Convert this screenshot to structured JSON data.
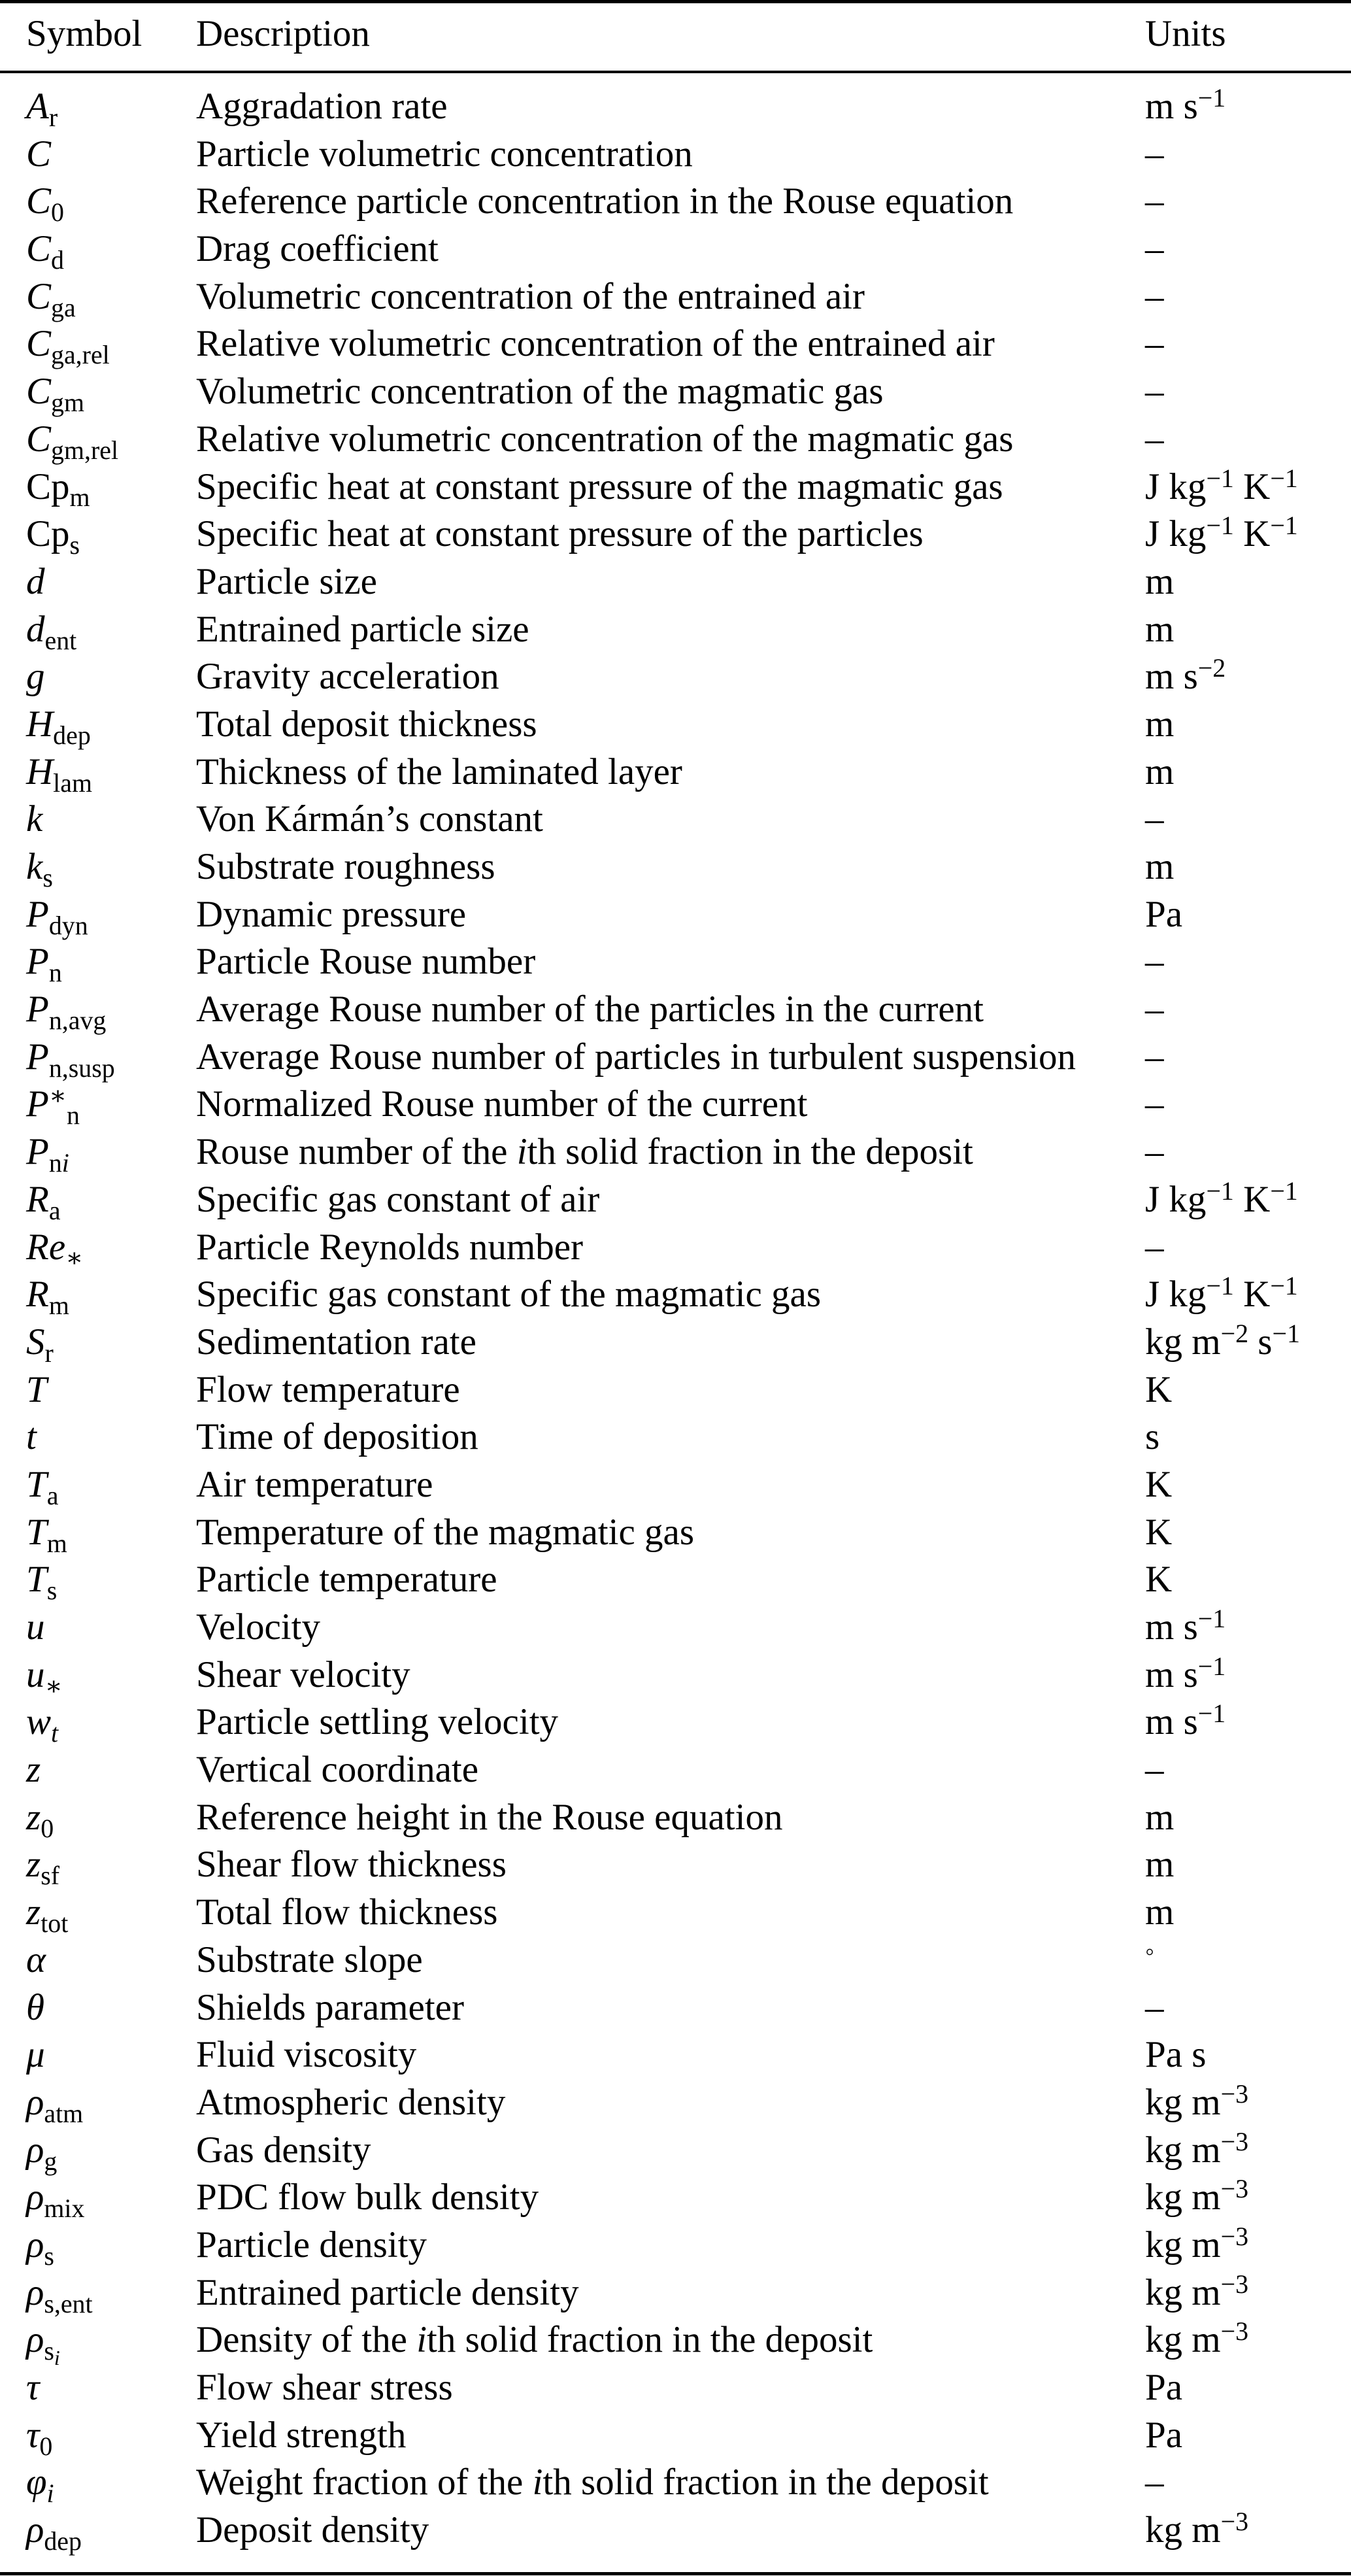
{
  "header": {
    "symbol": "Symbol",
    "description": "Description",
    "units": "Units"
  },
  "rows": [
    {
      "symbol": [
        [
          "i",
          "A"
        ],
        [
          "sub",
          "r"
        ]
      ],
      "description": [
        [
          "n",
          "Aggradation rate"
        ]
      ],
      "units": [
        [
          "n",
          "m s"
        ],
        [
          "sup",
          "−1"
        ]
      ]
    },
    {
      "symbol": [
        [
          "i",
          "C"
        ]
      ],
      "description": [
        [
          "n",
          "Particle volumetric concentration"
        ]
      ],
      "units": [
        [
          "n",
          "–"
        ]
      ]
    },
    {
      "symbol": [
        [
          "i",
          "C"
        ],
        [
          "sub",
          "0"
        ]
      ],
      "description": [
        [
          "n",
          "Reference particle concentration in the Rouse equation"
        ]
      ],
      "units": [
        [
          "n",
          "–"
        ]
      ]
    },
    {
      "symbol": [
        [
          "i",
          "C"
        ],
        [
          "sub",
          "d"
        ]
      ],
      "description": [
        [
          "n",
          "Drag coefficient"
        ]
      ],
      "units": [
        [
          "n",
          "–"
        ]
      ]
    },
    {
      "symbol": [
        [
          "i",
          "C"
        ],
        [
          "sub",
          "ga"
        ]
      ],
      "description": [
        [
          "n",
          "Volumetric concentration of the entrained air"
        ]
      ],
      "units": [
        [
          "n",
          "–"
        ]
      ]
    },
    {
      "symbol": [
        [
          "i",
          "C"
        ],
        [
          "sub",
          "ga,rel"
        ]
      ],
      "description": [
        [
          "n",
          "Relative volumetric concentration of the entrained air"
        ]
      ],
      "units": [
        [
          "n",
          "–"
        ]
      ]
    },
    {
      "symbol": [
        [
          "i",
          "C"
        ],
        [
          "sub",
          "gm"
        ]
      ],
      "description": [
        [
          "n",
          "Volumetric concentration of the magmatic gas"
        ]
      ],
      "units": [
        [
          "n",
          "–"
        ]
      ]
    },
    {
      "symbol": [
        [
          "i",
          "C"
        ],
        [
          "sub",
          "gm,rel"
        ]
      ],
      "description": [
        [
          "n",
          "Relative volumetric concentration of the magmatic gas"
        ]
      ],
      "units": [
        [
          "n",
          "–"
        ]
      ]
    },
    {
      "symbol": [
        [
          "n",
          "Cp"
        ],
        [
          "sub",
          "m"
        ]
      ],
      "description": [
        [
          "n",
          "Specific heat at constant pressure of the magmatic gas"
        ]
      ],
      "units": [
        [
          "n",
          "J kg"
        ],
        [
          "sup",
          "−1"
        ],
        [
          "n",
          " K"
        ],
        [
          "sup",
          "−1"
        ]
      ]
    },
    {
      "symbol": [
        [
          "n",
          "Cp"
        ],
        [
          "sub",
          "s"
        ]
      ],
      "description": [
        [
          "n",
          "Specific heat at constant pressure of the particles"
        ]
      ],
      "units": [
        [
          "n",
          "J kg"
        ],
        [
          "sup",
          "−1"
        ],
        [
          "n",
          " K"
        ],
        [
          "sup",
          "−1"
        ]
      ]
    },
    {
      "symbol": [
        [
          "i",
          "d"
        ]
      ],
      "description": [
        [
          "n",
          "Particle size"
        ]
      ],
      "units": [
        [
          "n",
          "m"
        ]
      ]
    },
    {
      "symbol": [
        [
          "i",
          "d"
        ],
        [
          "sub",
          "ent"
        ]
      ],
      "description": [
        [
          "n",
          "Entrained particle size"
        ]
      ],
      "units": [
        [
          "n",
          "m"
        ]
      ]
    },
    {
      "symbol": [
        [
          "i",
          "g"
        ]
      ],
      "description": [
        [
          "n",
          "Gravity acceleration"
        ]
      ],
      "units": [
        [
          "n",
          "m s"
        ],
        [
          "sup",
          "−2"
        ]
      ]
    },
    {
      "symbol": [
        [
          "i",
          "H"
        ],
        [
          "sub",
          "dep"
        ]
      ],
      "description": [
        [
          "n",
          "Total deposit thickness"
        ]
      ],
      "units": [
        [
          "n",
          "m"
        ]
      ]
    },
    {
      "symbol": [
        [
          "i",
          "H"
        ],
        [
          "sub",
          "lam"
        ]
      ],
      "description": [
        [
          "n",
          "Thickness of the laminated layer"
        ]
      ],
      "units": [
        [
          "n",
          "m"
        ]
      ]
    },
    {
      "symbol": [
        [
          "i",
          "k"
        ]
      ],
      "description": [
        [
          "n",
          "Von Kármán’s constant"
        ]
      ],
      "units": [
        [
          "n",
          "–"
        ]
      ]
    },
    {
      "symbol": [
        [
          "i",
          "k"
        ],
        [
          "sub",
          "s"
        ]
      ],
      "description": [
        [
          "n",
          "Substrate roughness"
        ]
      ],
      "units": [
        [
          "n",
          "m"
        ]
      ]
    },
    {
      "symbol": [
        [
          "i",
          "P"
        ],
        [
          "sub",
          "dyn"
        ]
      ],
      "description": [
        [
          "n",
          "Dynamic pressure"
        ]
      ],
      "units": [
        [
          "n",
          "Pa"
        ]
      ]
    },
    {
      "symbol": [
        [
          "i",
          "P"
        ],
        [
          "sub",
          "n"
        ]
      ],
      "description": [
        [
          "n",
          "Particle Rouse number"
        ]
      ],
      "units": [
        [
          "n",
          "–"
        ]
      ]
    },
    {
      "symbol": [
        [
          "i",
          "P"
        ],
        [
          "sub",
          "n,avg"
        ]
      ],
      "description": [
        [
          "n",
          "Average Rouse number of the particles in the current"
        ]
      ],
      "units": [
        [
          "n",
          "–"
        ]
      ]
    },
    {
      "symbol": [
        [
          "i",
          "P"
        ],
        [
          "sub",
          "n,susp"
        ]
      ],
      "description": [
        [
          "n",
          "Average Rouse number of particles in turbulent suspension"
        ]
      ],
      "units": [
        [
          "n",
          "–"
        ]
      ]
    },
    {
      "symbol": [
        [
          "i",
          "P"
        ],
        [
          "sup",
          "∗"
        ],
        [
          "sub",
          "n"
        ]
      ],
      "description": [
        [
          "n",
          "Normalized Rouse number of the current"
        ]
      ],
      "units": [
        [
          "n",
          "–"
        ]
      ]
    },
    {
      "symbol": [
        [
          "i",
          "P"
        ],
        [
          "sub",
          "n"
        ],
        [
          "subi",
          "i"
        ]
      ],
      "description": [
        [
          "n",
          "Rouse number of the "
        ],
        [
          "i",
          "i"
        ],
        [
          "n",
          "th solid fraction in the deposit"
        ]
      ],
      "units": [
        [
          "n",
          "–"
        ]
      ]
    },
    {
      "symbol": [
        [
          "i",
          "R"
        ],
        [
          "sub",
          "a"
        ]
      ],
      "description": [
        [
          "n",
          "Specific gas constant of air"
        ]
      ],
      "units": [
        [
          "n",
          "J kg"
        ],
        [
          "sup",
          "−1"
        ],
        [
          "n",
          " K"
        ],
        [
          "sup",
          "−1"
        ]
      ]
    },
    {
      "symbol": [
        [
          "i",
          "Re"
        ],
        [
          "sub",
          "∗"
        ]
      ],
      "description": [
        [
          "n",
          "Particle Reynolds number"
        ]
      ],
      "units": [
        [
          "n",
          "–"
        ]
      ]
    },
    {
      "symbol": [
        [
          "i",
          "R"
        ],
        [
          "sub",
          "m"
        ]
      ],
      "description": [
        [
          "n",
          "Specific gas constant of the magmatic gas"
        ]
      ],
      "units": [
        [
          "n",
          "J kg"
        ],
        [
          "sup",
          "−1"
        ],
        [
          "n",
          " K"
        ],
        [
          "sup",
          "−1"
        ]
      ]
    },
    {
      "symbol": [
        [
          "i",
          "S"
        ],
        [
          "sub",
          "r"
        ]
      ],
      "description": [
        [
          "n",
          "Sedimentation rate"
        ]
      ],
      "units": [
        [
          "n",
          "kg m"
        ],
        [
          "sup",
          "−2"
        ],
        [
          "n",
          " s"
        ],
        [
          "sup",
          "−1"
        ]
      ]
    },
    {
      "symbol": [
        [
          "i",
          "T"
        ]
      ],
      "description": [
        [
          "n",
          "Flow temperature"
        ]
      ],
      "units": [
        [
          "n",
          "K"
        ]
      ]
    },
    {
      "symbol": [
        [
          "i",
          "t"
        ]
      ],
      "description": [
        [
          "n",
          "Time of deposition"
        ]
      ],
      "units": [
        [
          "n",
          "s"
        ]
      ]
    },
    {
      "symbol": [
        [
          "i",
          "T"
        ],
        [
          "sub",
          "a"
        ]
      ],
      "description": [
        [
          "n",
          "Air temperature"
        ]
      ],
      "units": [
        [
          "n",
          "K"
        ]
      ]
    },
    {
      "symbol": [
        [
          "i",
          "T"
        ],
        [
          "sub",
          "m"
        ]
      ],
      "description": [
        [
          "n",
          "Temperature of the magmatic gas"
        ]
      ],
      "units": [
        [
          "n",
          "K"
        ]
      ]
    },
    {
      "symbol": [
        [
          "i",
          "T"
        ],
        [
          "sub",
          "s"
        ]
      ],
      "description": [
        [
          "n",
          "Particle temperature"
        ]
      ],
      "units": [
        [
          "n",
          "K"
        ]
      ]
    },
    {
      "symbol": [
        [
          "i",
          "u"
        ]
      ],
      "description": [
        [
          "n",
          "Velocity"
        ]
      ],
      "units": [
        [
          "n",
          "m s"
        ],
        [
          "sup",
          "−1"
        ]
      ]
    },
    {
      "symbol": [
        [
          "i",
          "u"
        ],
        [
          "sub",
          "∗"
        ]
      ],
      "description": [
        [
          "n",
          "Shear velocity"
        ]
      ],
      "units": [
        [
          "n",
          "m s"
        ],
        [
          "sup",
          "−1"
        ]
      ]
    },
    {
      "symbol": [
        [
          "i",
          "w"
        ],
        [
          "subi",
          "t"
        ]
      ],
      "description": [
        [
          "n",
          "Particle settling velocity"
        ]
      ],
      "units": [
        [
          "n",
          "m s"
        ],
        [
          "sup",
          "−1"
        ]
      ]
    },
    {
      "symbol": [
        [
          "i",
          "z"
        ]
      ],
      "description": [
        [
          "n",
          "Vertical coordinate"
        ]
      ],
      "units": [
        [
          "n",
          "–"
        ]
      ]
    },
    {
      "symbol": [
        [
          "i",
          "z"
        ],
        [
          "sub",
          "0"
        ]
      ],
      "description": [
        [
          "n",
          "Reference height in the Rouse equation"
        ]
      ],
      "units": [
        [
          "n",
          "m"
        ]
      ]
    },
    {
      "symbol": [
        [
          "i",
          "z"
        ],
        [
          "sub",
          "sf"
        ]
      ],
      "description": [
        [
          "n",
          "Shear flow thickness"
        ]
      ],
      "units": [
        [
          "n",
          "m"
        ]
      ]
    },
    {
      "symbol": [
        [
          "i",
          "z"
        ],
        [
          "sub",
          "tot"
        ]
      ],
      "description": [
        [
          "n",
          "Total flow thickness"
        ]
      ],
      "units": [
        [
          "n",
          "m"
        ]
      ]
    },
    {
      "symbol": [
        [
          "i",
          "α"
        ]
      ],
      "description": [
        [
          "n",
          "Substrate slope"
        ]
      ],
      "units": [
        [
          "sup",
          "◦"
        ]
      ]
    },
    {
      "symbol": [
        [
          "i",
          "θ"
        ]
      ],
      "description": [
        [
          "n",
          "Shields parameter"
        ]
      ],
      "units": [
        [
          "n",
          "–"
        ]
      ]
    },
    {
      "symbol": [
        [
          "i",
          "μ"
        ]
      ],
      "description": [
        [
          "n",
          "Fluid viscosity"
        ]
      ],
      "units": [
        [
          "n",
          "Pa s"
        ]
      ]
    },
    {
      "symbol": [
        [
          "i",
          "ρ"
        ],
        [
          "sub",
          "atm"
        ]
      ],
      "description": [
        [
          "n",
          "Atmospheric density"
        ]
      ],
      "units": [
        [
          "n",
          "kg m"
        ],
        [
          "sup",
          "−3"
        ]
      ]
    },
    {
      "symbol": [
        [
          "i",
          "ρ"
        ],
        [
          "sub",
          "g"
        ]
      ],
      "description": [
        [
          "n",
          "Gas density"
        ]
      ],
      "units": [
        [
          "n",
          "kg m"
        ],
        [
          "sup",
          "−3"
        ]
      ]
    },
    {
      "symbol": [
        [
          "i",
          "ρ"
        ],
        [
          "sub",
          "mix"
        ]
      ],
      "description": [
        [
          "n",
          "PDC flow bulk density"
        ]
      ],
      "units": [
        [
          "n",
          "kg m"
        ],
        [
          "sup",
          "−3"
        ]
      ]
    },
    {
      "symbol": [
        [
          "i",
          "ρ"
        ],
        [
          "sub",
          "s"
        ]
      ],
      "description": [
        [
          "n",
          "Particle density"
        ]
      ],
      "units": [
        [
          "n",
          "kg m"
        ],
        [
          "sup",
          "−3"
        ]
      ]
    },
    {
      "symbol": [
        [
          "i",
          "ρ"
        ],
        [
          "sub",
          "s,ent"
        ]
      ],
      "description": [
        [
          "n",
          "Entrained particle density"
        ]
      ],
      "units": [
        [
          "n",
          "kg m"
        ],
        [
          "sup",
          "−3"
        ]
      ]
    },
    {
      "symbol": [
        [
          "i",
          "ρ"
        ],
        [
          "subsub",
          "s",
          "i"
        ]
      ],
      "description": [
        [
          "n",
          "Density of the "
        ],
        [
          "i",
          "i"
        ],
        [
          "n",
          "th solid fraction in the deposit"
        ]
      ],
      "units": [
        [
          "n",
          "kg m"
        ],
        [
          "sup",
          "−3"
        ]
      ]
    },
    {
      "symbol": [
        [
          "i",
          "τ"
        ]
      ],
      "description": [
        [
          "n",
          "Flow shear stress"
        ]
      ],
      "units": [
        [
          "n",
          "Pa"
        ]
      ]
    },
    {
      "symbol": [
        [
          "i",
          "τ"
        ],
        [
          "sub",
          "0"
        ]
      ],
      "description": [
        [
          "n",
          "Yield strength"
        ]
      ],
      "units": [
        [
          "n",
          "Pa"
        ]
      ]
    },
    {
      "symbol": [
        [
          "i",
          "φ"
        ],
        [
          "subi",
          "i"
        ]
      ],
      "description": [
        [
          "n",
          "Weight fraction of the "
        ],
        [
          "i",
          "i"
        ],
        [
          "n",
          "th solid fraction in the deposit"
        ]
      ],
      "units": [
        [
          "n",
          "–"
        ]
      ]
    },
    {
      "symbol": [
        [
          "i",
          "ρ"
        ],
        [
          "sub",
          "dep"
        ]
      ],
      "description": [
        [
          "n",
          "Deposit density"
        ]
      ],
      "units": [
        [
          "n",
          "kg m"
        ],
        [
          "sup",
          "−3"
        ]
      ]
    }
  ]
}
